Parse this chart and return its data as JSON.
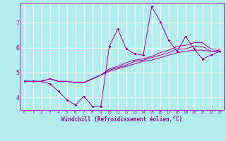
{
  "xlabel": "Windchill (Refroidissement éolien,°C)",
  "bg_color": "#b2ecec",
  "grid_color": "#ffffff",
  "line_color": "#990099",
  "xlim": [
    -0.5,
    23.5
  ],
  "ylim": [
    3.5,
    7.8
  ],
  "yticks": [
    4,
    5,
    6,
    7
  ],
  "xticks": [
    0,
    1,
    2,
    3,
    4,
    5,
    6,
    7,
    8,
    9,
    10,
    11,
    12,
    13,
    14,
    15,
    16,
    17,
    18,
    19,
    20,
    21,
    22,
    23
  ],
  "series": [
    [
      4.65,
      4.65,
      4.65,
      4.55,
      4.25,
      3.9,
      3.7,
      4.05,
      3.65,
      3.65,
      6.05,
      6.75,
      5.95,
      5.75,
      5.7,
      7.65,
      7.05,
      6.3,
      5.85,
      6.45,
      5.95,
      5.55,
      5.7,
      5.85
    ],
    [
      4.65,
      4.65,
      4.65,
      4.75,
      4.65,
      4.65,
      4.6,
      4.6,
      4.75,
      4.9,
      5.05,
      5.15,
      5.25,
      5.35,
      5.45,
      5.5,
      5.6,
      5.7,
      5.8,
      5.85,
      5.9,
      5.9,
      5.85,
      5.85
    ],
    [
      4.65,
      4.65,
      4.65,
      4.75,
      4.65,
      4.65,
      4.6,
      4.6,
      4.75,
      4.9,
      5.1,
      5.2,
      5.3,
      5.45,
      5.5,
      5.6,
      5.7,
      5.8,
      5.95,
      5.95,
      6.05,
      6.05,
      5.85,
      5.9
    ],
    [
      4.65,
      4.65,
      4.65,
      4.75,
      4.65,
      4.65,
      4.6,
      4.6,
      4.75,
      4.9,
      5.15,
      5.25,
      5.4,
      5.5,
      5.55,
      5.65,
      5.8,
      5.9,
      6.05,
      6.1,
      6.2,
      6.2,
      5.95,
      5.95
    ]
  ]
}
